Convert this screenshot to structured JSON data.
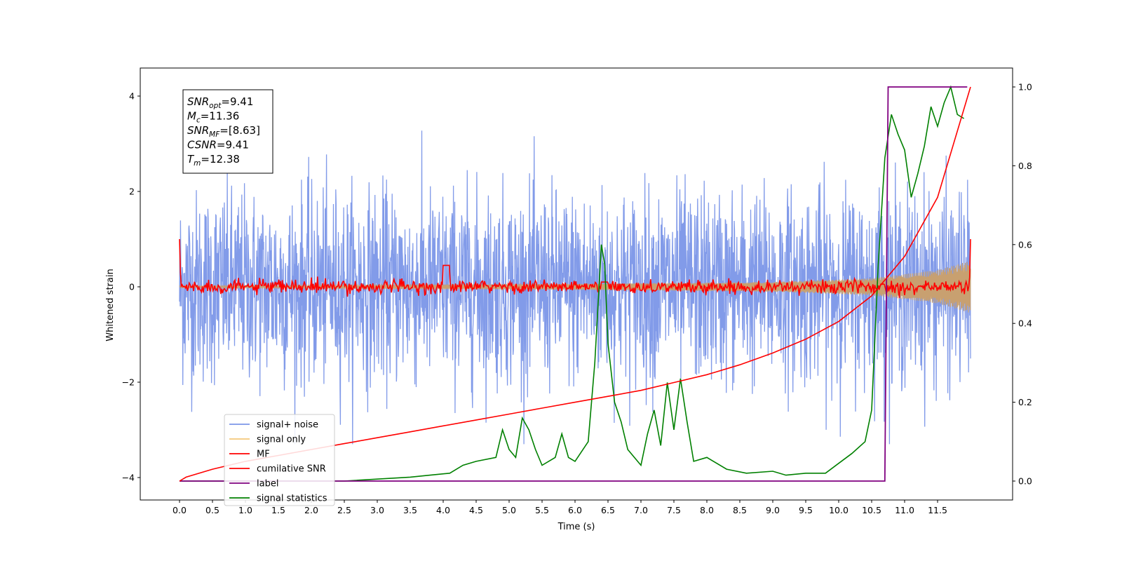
{
  "chart_data": {
    "type": "line",
    "xlabel": "Time (s)",
    "ylabel": "Whitened strain",
    "xlim": [
      -0.6,
      12.1
    ],
    "ylim": [
      -4.5,
      4.6
    ],
    "y2lim": [
      -0.05,
      1.04
    ],
    "x_ticks": [
      "0.0",
      "0.5",
      "1.0",
      "1.5",
      "2.0",
      "2.5",
      "3.0",
      "3.5",
      "4.0",
      "4.5",
      "5.0",
      "5.5",
      "6.0",
      "6.5",
      "7.0",
      "7.5",
      "8.0",
      "8.5",
      "9.0",
      "9.5",
      "10.0",
      "10.5",
      "11.0",
      "11.5"
    ],
    "y_ticks": [
      "−4",
      "−2",
      "0",
      "2",
      "4"
    ],
    "y2_ticks": [
      "0.0",
      "0.2",
      "0.4",
      "0.6",
      "0.8",
      "1.0"
    ],
    "annotation": {
      "lines": [
        {
          "sym": "SNR",
          "sub": "opt",
          "value": "=9.41"
        },
        {
          "sym": "M",
          "sub": "c",
          "value": "=11.36"
        },
        {
          "sym": "SNR",
          "sub": "MF",
          "value": "=[8.63]"
        },
        {
          "sym": "CSNR",
          "sub": "",
          "value": "=9.41"
        },
        {
          "sym": "T",
          "sub": "m",
          "value": "=12.38"
        }
      ]
    },
    "legend": {
      "position": "lower-left",
      "entries": [
        {
          "label": "signal+ noise",
          "color": "#7b96e8"
        },
        {
          "label": "signal only",
          "color": "#f5c87a"
        },
        {
          "label": "MF",
          "color": "#ff0000"
        },
        {
          "label": "cumilative SNR",
          "color": "#ff0000"
        },
        {
          "label": "label",
          "color": "#800080"
        },
        {
          "label": "signal statistics",
          "color": "#008000"
        }
      ]
    },
    "series": [
      {
        "name": "signal+ noise",
        "axis": "left",
        "color": "#7b96e8",
        "duration": 12.0,
        "noise_amplitude": 1.0,
        "peak_min": -3.3,
        "peak_max": 4.15
      },
      {
        "name": "signal only",
        "axis": "left",
        "color": "#c8a070",
        "envelope": [
          [
            0.0,
            0.02
          ],
          [
            6.0,
            0.06
          ],
          [
            9.0,
            0.1
          ],
          [
            10.5,
            0.18
          ],
          [
            11.5,
            0.35
          ],
          [
            12.0,
            0.55
          ]
        ]
      },
      {
        "name": "MF",
        "axis": "left",
        "color": "#ff0000",
        "start": 1.0,
        "end": 1.0,
        "notable": [
          [
            4.05,
            0.45
          ],
          [
            6.45,
            0.1
          ]
        ]
      },
      {
        "name": "cumilative SNR",
        "axis": "right",
        "color": "#ff0000",
        "x": [
          0.0,
          0.1,
          0.5,
          1.0,
          1.5,
          2.0,
          2.5,
          3.0,
          3.5,
          4.0,
          4.5,
          5.0,
          5.5,
          6.0,
          6.5,
          7.0,
          7.5,
          8.0,
          8.5,
          9.0,
          9.5,
          10.0,
          10.5,
          11.0,
          11.5,
          12.0
        ],
        "y": [
          0.0,
          0.01,
          0.03,
          0.05,
          0.065,
          0.08,
          0.095,
          0.11,
          0.125,
          0.14,
          0.155,
          0.17,
          0.185,
          0.2,
          0.215,
          0.23,
          0.25,
          0.27,
          0.295,
          0.325,
          0.36,
          0.405,
          0.47,
          0.57,
          0.72,
          1.0
        ]
      },
      {
        "name": "label",
        "axis": "right",
        "color": "#800080",
        "x": [
          0.0,
          10.7,
          10.75,
          11.95
        ],
        "y": [
          0.0,
          0.0,
          1.0,
          1.0
        ]
      },
      {
        "name": "signal statistics",
        "axis": "right",
        "color": "#008000",
        "x": [
          0.0,
          2.5,
          3.0,
          3.5,
          3.8,
          4.1,
          4.3,
          4.5,
          4.8,
          4.9,
          5.0,
          5.1,
          5.2,
          5.3,
          5.4,
          5.5,
          5.7,
          5.8,
          5.9,
          6.0,
          6.2,
          6.3,
          6.4,
          6.45,
          6.5,
          6.6,
          6.7,
          6.8,
          6.9,
          7.0,
          7.1,
          7.2,
          7.3,
          7.4,
          7.5,
          7.6,
          7.7,
          7.8,
          8.0,
          8.3,
          8.6,
          9.0,
          9.2,
          9.5,
          9.8,
          10.0,
          10.2,
          10.4,
          10.5,
          10.6,
          10.7,
          10.8,
          10.9,
          11.0,
          11.1,
          11.2,
          11.3,
          11.4,
          11.5,
          11.6,
          11.7,
          11.8,
          11.9
        ],
        "y": [
          0.0,
          0.0,
          0.005,
          0.01,
          0.015,
          0.02,
          0.04,
          0.05,
          0.06,
          0.13,
          0.08,
          0.06,
          0.16,
          0.13,
          0.08,
          0.04,
          0.06,
          0.12,
          0.06,
          0.05,
          0.1,
          0.3,
          0.6,
          0.55,
          0.35,
          0.2,
          0.15,
          0.08,
          0.06,
          0.04,
          0.12,
          0.18,
          0.09,
          0.25,
          0.13,
          0.26,
          0.15,
          0.05,
          0.06,
          0.03,
          0.02,
          0.025,
          0.015,
          0.02,
          0.02,
          0.045,
          0.07,
          0.1,
          0.18,
          0.55,
          0.82,
          0.93,
          0.88,
          0.84,
          0.72,
          0.78,
          0.85,
          0.95,
          0.9,
          0.96,
          1.0,
          0.93,
          0.92
        ]
      }
    ]
  }
}
